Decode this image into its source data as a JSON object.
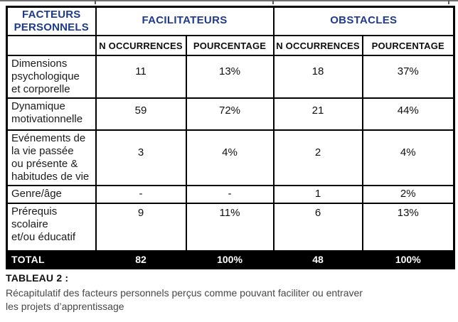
{
  "colors": {
    "header_blue": "#1d3a8f",
    "border_black": "#000000",
    "total_row_bg": "#000000",
    "total_row_text": "#ffffff",
    "body_text": "#1b1b1b",
    "caption_text": "#474747"
  },
  "table": {
    "headers": {
      "factors": "FACTEURS\nPERSONNELS",
      "facilitateurs": "FACILITATEURS",
      "obstacles": "OBSTACLES",
      "n_occurrences": "N OCCURRENCES",
      "pourcentage": "POURCENTAGE"
    },
    "rows": [
      {
        "label": "Dimensions\npsychologique\net corporelle",
        "fac_n": "11",
        "fac_pct": "13%",
        "obs_n": "18",
        "obs_pct": "37%"
      },
      {
        "label": "Dynamique\nmotivationnelle",
        "fac_n": "59",
        "fac_pct": "72%",
        "obs_n": "21",
        "obs_pct": "44%"
      },
      {
        "label": "Evénements de\nla vie passée\nou présente &\nhabitudes de vie",
        "fac_n": "3",
        "fac_pct": "4%",
        "obs_n": "2",
        "obs_pct": "4%"
      },
      {
        "label": "Genre/âge",
        "fac_n": "-",
        "fac_pct": "-",
        "obs_n": "1",
        "obs_pct": "2%"
      },
      {
        "label": "Prérequis\nscolaire\net/ou éducatif",
        "fac_n": "9",
        "fac_pct": "11%",
        "obs_n": "6",
        "obs_pct": "13%"
      }
    ],
    "total": {
      "label": "TOTAL",
      "fac_n": "82",
      "fac_pct": "100%",
      "obs_n": "48",
      "obs_pct": "100%"
    }
  },
  "caption": {
    "title": "TABLEAU 2 :",
    "text": "Récapitulatif des facteurs personnels perçus comme pouvant faciliter ou entraver\nles projets d’apprentissage"
  }
}
